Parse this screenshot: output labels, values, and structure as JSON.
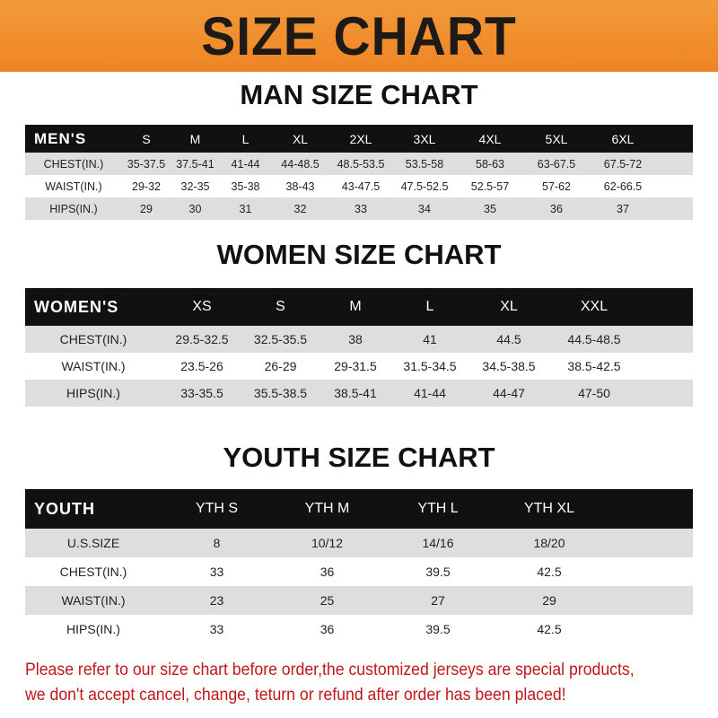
{
  "banner_title": "SIZE CHART",
  "men": {
    "title": "MAN SIZE CHART",
    "header": [
      "MEN'S",
      "S",
      "M",
      "L",
      "XL",
      "2XL",
      "3XL",
      "4XL",
      "5XL",
      "6XL"
    ],
    "rows": [
      [
        "CHEST(IN.)",
        "35-37.5",
        "37.5-41",
        "41-44",
        "44-48.5",
        "48.5-53.5",
        "53.5-58",
        "58-63",
        "63-67.5",
        "67.5-72"
      ],
      [
        "WAIST(IN.)",
        "29-32",
        "32-35",
        "35-38",
        "38-43",
        "43-47.5",
        "47.5-52.5",
        "52.5-57",
        "57-62",
        "62-66.5"
      ],
      [
        "HIPS(IN.)",
        "29",
        "30",
        "31",
        "32",
        "33",
        "34",
        "35",
        "36",
        "37"
      ]
    ]
  },
  "women": {
    "title": "WOMEN SIZE CHART",
    "header": [
      "WOMEN'S",
      "XS",
      "S",
      "M",
      "L",
      "XL",
      "XXL"
    ],
    "rows": [
      [
        "CHEST(IN.)",
        "29.5-32.5",
        "32.5-35.5",
        "38",
        "41",
        "44.5",
        "44.5-48.5"
      ],
      [
        "WAIST(IN.)",
        "23.5-26",
        "26-29",
        "29-31.5",
        "31.5-34.5",
        "34.5-38.5",
        "38.5-42.5"
      ],
      [
        "HIPS(IN.)",
        "33-35.5",
        "35.5-38.5",
        "38.5-41",
        "41-44",
        "44-47",
        "47-50"
      ]
    ]
  },
  "youth": {
    "title": "YOUTH SIZE CHART",
    "header": [
      "YOUTH",
      "YTH S",
      "YTH M",
      "YTH L",
      "YTH XL"
    ],
    "rows": [
      [
        "U.S.SIZE",
        "8",
        "10/12",
        "14/16",
        "18/20"
      ],
      [
        "CHEST(IN.)",
        "33",
        "36",
        "39.5",
        "42.5"
      ],
      [
        "WAIST(IN.)",
        "23",
        "25",
        "27",
        "29"
      ],
      [
        "HIPS(IN.)",
        "33",
        "36",
        "39.5",
        "42.5"
      ]
    ]
  },
  "footer": {
    "line1": "Please refer to our size chart before order,the customized jerseys are special products,",
    "line2": "we don't accept cancel, change, teturn or refund after order has been placed!"
  },
  "colors": {
    "banner": "#ee8424",
    "header_bg": "#121010",
    "row_gray": "#dedede",
    "notice": "#c0171f"
  }
}
